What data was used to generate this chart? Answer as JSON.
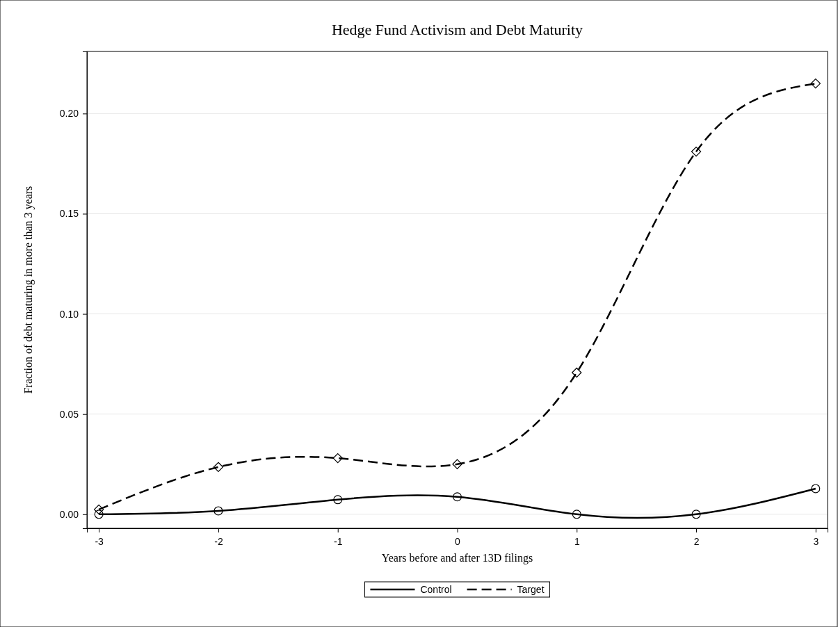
{
  "chart_data": {
    "type": "line",
    "title": "Hedge Fund Activism and Debt Maturity",
    "xlabel": "Years before and after 13D filings",
    "ylabel": "Fraction of debt maturing in more than 3 years",
    "x": [
      -3,
      -2,
      -1,
      0,
      1,
      2,
      3
    ],
    "series": [
      {
        "name": "Control",
        "color": "#000000",
        "line_style": "solid",
        "marker": "circle",
        "values": [
          0.0,
          0.0017,
          0.0073,
          0.0087,
          0.0,
          0.0,
          0.0128
        ]
      },
      {
        "name": "Target",
        "color": "#000000",
        "line_style": "dashed",
        "marker": "diamond",
        "values": [
          0.0024,
          0.0236,
          0.028,
          0.025,
          0.0707,
          0.181,
          0.215
        ]
      }
    ],
    "xlim": [
      -3.1,
      3.1
    ],
    "xticks": [
      -3,
      -2,
      -1,
      0,
      1,
      2,
      3
    ],
    "ylim": [
      -0.007,
      0.231
    ],
    "yticks": [
      {
        "value": 0,
        "label": "0.00"
      },
      {
        "value": 0.05,
        "label": "0.05"
      },
      {
        "value": 0.1,
        "label": "0.10"
      },
      {
        "value": 0.15,
        "label": "0.15"
      },
      {
        "value": 0.2,
        "label": "0.20"
      }
    ],
    "grid": "y",
    "legend": "bottom"
  }
}
